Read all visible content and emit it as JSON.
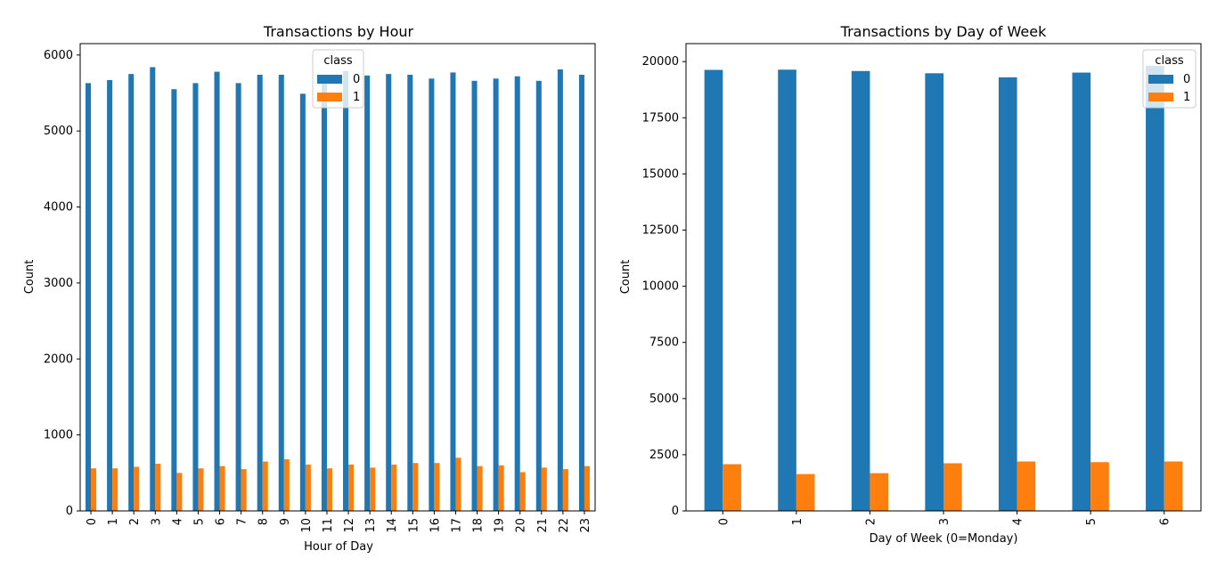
{
  "chart_data": [
    {
      "type": "bar",
      "title": "Transactions by Hour",
      "xlabel": "Hour of Day",
      "ylabel": "Count",
      "categories": [
        "0",
        "1",
        "2",
        "3",
        "4",
        "5",
        "6",
        "7",
        "8",
        "9",
        "10",
        "11",
        "12",
        "13",
        "14",
        "15",
        "16",
        "17",
        "18",
        "19",
        "20",
        "21",
        "22",
        "23"
      ],
      "series": [
        {
          "name": "0",
          "color": "#1f77b4",
          "values": [
            5630,
            5670,
            5750,
            5840,
            5550,
            5630,
            5780,
            5630,
            5740,
            5740,
            5490,
            5730,
            5790,
            5730,
            5750,
            5740,
            5690,
            5770,
            5660,
            5690,
            5720,
            5660,
            5810,
            5740
          ]
        },
        {
          "name": "1",
          "color": "#ff7f0e",
          "values": [
            560,
            560,
            580,
            620,
            500,
            560,
            590,
            550,
            650,
            680,
            610,
            560,
            610,
            570,
            610,
            630,
            630,
            700,
            590,
            600,
            510,
            570,
            550,
            590
          ]
        }
      ],
      "ylim": [
        0,
        6150
      ],
      "yticks": [
        0,
        1000,
        2000,
        3000,
        4000,
        5000,
        6000
      ],
      "grid": false,
      "legend": {
        "title": "class",
        "position": "upper-center"
      }
    },
    {
      "type": "bar",
      "title": "Transactions by Day of Week",
      "xlabel": "Day of Week (0=Monday)",
      "ylabel": "Count",
      "categories": [
        "0",
        "1",
        "2",
        "3",
        "4",
        "5",
        "6"
      ],
      "series": [
        {
          "name": "0",
          "color": "#1f77b4",
          "values": [
            19630,
            19640,
            19580,
            19480,
            19300,
            19510,
            19810
          ]
        },
        {
          "name": "1",
          "color": "#ff7f0e",
          "values": [
            2080,
            1640,
            1680,
            2120,
            2200,
            2170,
            2200
          ]
        }
      ],
      "ylim": [
        0,
        20800
      ],
      "yticks": [
        0,
        2500,
        5000,
        7500,
        10000,
        12500,
        15000,
        17500,
        20000
      ],
      "grid": false,
      "legend": {
        "title": "class",
        "position": "upper-right"
      }
    }
  ]
}
